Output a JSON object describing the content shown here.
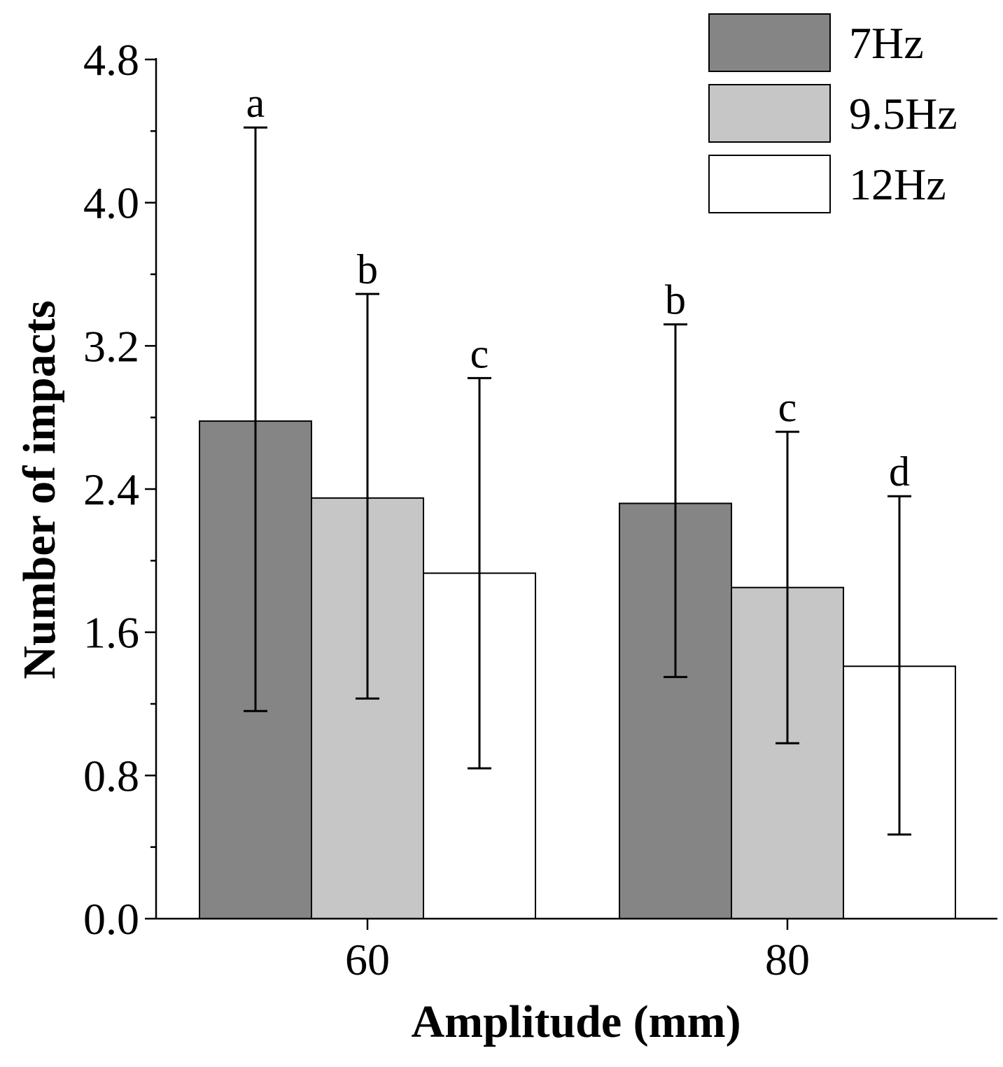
{
  "chart_data": {
    "type": "bar",
    "title": "",
    "xlabel": "Amplitude (mm)",
    "ylabel": "Number of impacts",
    "ylim": [
      0,
      4.8
    ],
    "yticks": [
      "0.0",
      "0.8",
      "1.6",
      "2.4",
      "3.2",
      "4.0",
      "4.8"
    ],
    "categories": [
      "60",
      "80"
    ],
    "legend_position": "top-right",
    "series": [
      {
        "name": "7Hz",
        "color": "#858585",
        "values": [
          2.78,
          2.32
        ],
        "err_upper": [
          4.42,
          3.32
        ],
        "err_lower": [
          1.16,
          1.35
        ],
        "letters": [
          "a",
          "b"
        ]
      },
      {
        "name": "9.5Hz",
        "color": "#c6c6c6",
        "values": [
          2.35,
          1.85
        ],
        "err_upper": [
          3.49,
          2.72
        ],
        "err_lower": [
          1.23,
          0.98
        ],
        "letters": [
          "b",
          "c"
        ]
      },
      {
        "name": "12Hz",
        "color": "#ffffff",
        "values": [
          1.93,
          1.41
        ],
        "err_upper": [
          3.02,
          2.36
        ],
        "err_lower": [
          0.84,
          0.47
        ],
        "letters": [
          "c",
          "d"
        ]
      }
    ]
  }
}
